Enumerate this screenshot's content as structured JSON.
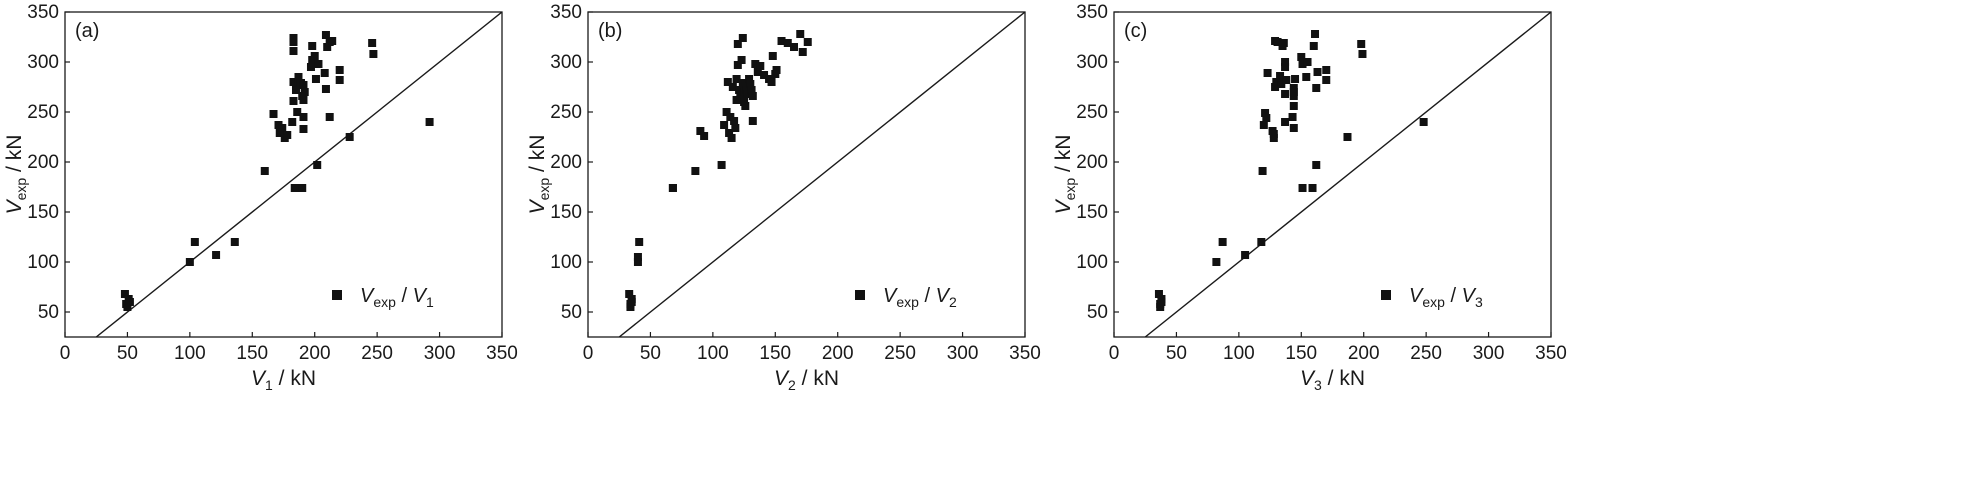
{
  "chart_data": [
    {
      "type": "scatter",
      "panel_label": "(a)",
      "xlabel": {
        "var": "V",
        "sub": "1",
        "unit": " / kN"
      },
      "ylabel": {
        "var": "V",
        "sub": "exp",
        "unit": " / kN"
      },
      "xlim": [
        0,
        350
      ],
      "ylim": [
        25,
        350
      ],
      "xticks": [
        0,
        50,
        100,
        150,
        200,
        250,
        300,
        350
      ],
      "yticks": [
        50,
        100,
        150,
        200,
        250,
        300,
        350
      ],
      "reference_line": "y = x",
      "legend": {
        "position": "bottom-right",
        "var": "V",
        "sub": "exp",
        "sep": " / ",
        "var2": "V",
        "sub2": "1"
      },
      "points": [
        [
          48,
          68
        ],
        [
          49,
          58
        ],
        [
          50,
          55
        ],
        [
          51,
          63
        ],
        [
          52,
          60
        ],
        [
          100,
          100
        ],
        [
          104,
          120
        ],
        [
          121,
          107
        ],
        [
          136,
          120
        ],
        [
          160,
          191
        ],
        [
          167,
          248
        ],
        [
          171,
          237
        ],
        [
          172,
          229
        ],
        [
          174,
          234
        ],
        [
          176,
          224
        ],
        [
          178,
          227
        ],
        [
          182,
          240
        ],
        [
          183,
          320
        ],
        [
          183,
          324
        ],
        [
          183,
          311
        ],
        [
          183,
          261
        ],
        [
          183,
          280
        ],
        [
          184,
          174
        ],
        [
          185,
          272
        ],
        [
          186,
          250
        ],
        [
          187,
          285
        ],
        [
          187,
          278
        ],
        [
          189,
          279
        ],
        [
          190,
          266
        ],
        [
          190,
          174
        ],
        [
          191,
          262
        ],
        [
          191,
          233
        ],
        [
          191,
          245
        ],
        [
          191,
          277
        ],
        [
          192,
          270
        ],
        [
          197,
          295
        ],
        [
          198,
          316
        ],
        [
          198,
          302
        ],
        [
          200,
          306
        ],
        [
          201,
          283
        ],
        [
          202,
          197
        ],
        [
          203,
          298
        ],
        [
          208,
          289
        ],
        [
          209,
          327
        ],
        [
          209,
          273
        ],
        [
          210,
          315
        ],
        [
          212,
          320
        ],
        [
          212,
          245
        ],
        [
          214,
          321
        ],
        [
          220,
          292
        ],
        [
          220,
          282
        ],
        [
          228,
          225
        ],
        [
          246,
          319
        ],
        [
          247,
          308
        ],
        [
          292,
          240
        ]
      ]
    },
    {
      "type": "scatter",
      "panel_label": "(b)",
      "xlabel": {
        "var": "V",
        "sub": "2",
        "unit": " / kN"
      },
      "ylabel": {
        "var": "V",
        "sub": "exp",
        "unit": " / kN"
      },
      "xlim": [
        0,
        350
      ],
      "ylim": [
        25,
        350
      ],
      "xticks": [
        0,
        50,
        100,
        150,
        200,
        250,
        300,
        350
      ],
      "yticks": [
        50,
        100,
        150,
        200,
        250,
        300,
        350
      ],
      "reference_line": "y = x",
      "legend": {
        "position": "bottom-right",
        "var": "V",
        "sub": "exp",
        "sep": " / ",
        "var2": "V",
        "sub2": "2"
      },
      "points": [
        [
          33,
          68
        ],
        [
          34,
          58
        ],
        [
          34,
          55
        ],
        [
          35,
          63
        ],
        [
          35,
          60
        ],
        [
          40,
          100
        ],
        [
          40,
          105
        ],
        [
          41,
          120
        ],
        [
          68,
          174
        ],
        [
          68,
          174
        ],
        [
          86,
          191
        ],
        [
          90,
          231
        ],
        [
          93,
          226
        ],
        [
          107,
          197
        ],
        [
          109,
          237
        ],
        [
          111,
          250
        ],
        [
          112,
          280
        ],
        [
          113,
          229
        ],
        [
          114,
          245
        ],
        [
          115,
          224
        ],
        [
          116,
          275
        ],
        [
          117,
          241
        ],
        [
          118,
          234
        ],
        [
          119,
          262
        ],
        [
          119,
          283
        ],
        [
          120,
          297
        ],
        [
          120,
          318
        ],
        [
          121,
          272
        ],
        [
          122,
          266
        ],
        [
          123,
          302
        ],
        [
          124,
          324
        ],
        [
          124,
          279
        ],
        [
          125,
          270
        ],
        [
          125,
          260
        ],
        [
          126,
          256
        ],
        [
          127,
          272
        ],
        [
          128,
          268
        ],
        [
          129,
          283
        ],
        [
          130,
          278
        ],
        [
          131,
          272
        ],
        [
          132,
          266
        ],
        [
          132,
          241
        ],
        [
          134,
          298
        ],
        [
          136,
          290
        ],
        [
          138,
          296
        ],
        [
          141,
          287
        ],
        [
          145,
          283
        ],
        [
          147,
          280
        ],
        [
          148,
          306
        ],
        [
          150,
          288
        ],
        [
          151,
          292
        ],
        [
          155,
          321
        ],
        [
          160,
          319
        ],
        [
          165,
          315
        ],
        [
          170,
          328
        ],
        [
          172,
          310
        ],
        [
          176,
          320
        ]
      ]
    },
    {
      "type": "scatter",
      "panel_label": "(c)",
      "xlabel": {
        "var": "V",
        "sub": "3",
        "unit": " / kN"
      },
      "ylabel": {
        "var": "V",
        "sub": "exp",
        "unit": " / kN"
      },
      "xlim": [
        0,
        350
      ],
      "ylim": [
        25,
        350
      ],
      "xticks": [
        0,
        50,
        100,
        150,
        200,
        250,
        300,
        350
      ],
      "yticks": [
        50,
        100,
        150,
        200,
        250,
        300,
        350
      ],
      "reference_line": "y = x",
      "legend": {
        "position": "bottom-right",
        "var": "V",
        "sub": "exp",
        "sep": " / ",
        "var2": "V",
        "sub2": "3"
      },
      "points": [
        [
          36,
          68
        ],
        [
          37,
          58
        ],
        [
          37,
          55
        ],
        [
          38,
          63
        ],
        [
          38,
          60
        ],
        [
          82,
          100
        ],
        [
          87,
          120
        ],
        [
          105,
          107
        ],
        [
          118,
          120
        ],
        [
          119,
          191
        ],
        [
          120,
          237
        ],
        [
          121,
          249
        ],
        [
          122,
          244
        ],
        [
          123,
          289
        ],
        [
          127,
          231
        ],
        [
          128,
          228
        ],
        [
          128,
          224
        ],
        [
          129,
          275
        ],
        [
          129,
          321
        ],
        [
          130,
          280
        ],
        [
          131,
          320
        ],
        [
          133,
          286
        ],
        [
          134,
          278
        ],
        [
          135,
          316
        ],
        [
          136,
          319
        ],
        [
          137,
          300
        ],
        [
          137,
          295
        ],
        [
          137,
          240
        ],
        [
          137,
          268
        ],
        [
          138,
          282
        ],
        [
          143,
          245
        ],
        [
          144,
          270
        ],
        [
          144,
          266
        ],
        [
          144,
          274
        ],
        [
          144,
          256
        ],
        [
          144,
          234
        ],
        [
          145,
          283
        ],
        [
          150,
          305
        ],
        [
          151,
          298
        ],
        [
          151,
          174
        ],
        [
          154,
          285
        ],
        [
          155,
          300
        ],
        [
          159,
          174
        ],
        [
          160,
          316
        ],
        [
          161,
          328
        ],
        [
          162,
          197
        ],
        [
          162,
          274
        ],
        [
          163,
          290
        ],
        [
          170,
          282
        ],
        [
          170,
          292
        ],
        [
          187,
          225
        ],
        [
          198,
          318
        ],
        [
          199,
          308
        ],
        [
          248,
          240
        ]
      ]
    }
  ]
}
